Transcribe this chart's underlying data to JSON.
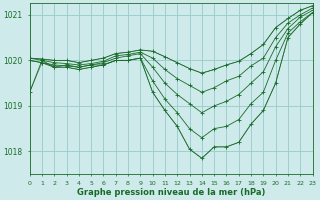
{
  "title": "Graphe pression niveau de la mer (hPa)",
  "background_color": "#ceeaea",
  "grid_color": "#9ecfcf",
  "line_color": "#1a6b2a",
  "xlim": [
    0,
    23
  ],
  "ylim": [
    1017.5,
    1021.25
  ],
  "yticks": [
    1018,
    1019,
    1020,
    1021
  ],
  "xtick_labels": [
    "0",
    "1",
    "2",
    "3",
    "4",
    "5",
    "6",
    "7",
    "8",
    "9",
    "10",
    "11",
    "12",
    "13",
    "14",
    "15",
    "16",
    "17",
    "18",
    "19",
    "20",
    "21",
    "22",
    "23"
  ],
  "series": [
    [
      1019.3,
      1020.0,
      1019.85,
      1019.9,
      1019.85,
      1019.9,
      1019.9,
      1020.0,
      1020.0,
      1020.05,
      1019.3,
      1018.9,
      1018.55,
      1018.05,
      1017.85,
      1018.1,
      1018.1,
      1018.2,
      1018.6,
      1018.9,
      1019.5,
      1020.5,
      1020.8,
      1021.05
    ],
    [
      1020.0,
      1019.95,
      1019.85,
      1019.85,
      1019.8,
      1019.85,
      1019.9,
      1020.0,
      1020.0,
      1020.05,
      1019.55,
      1019.15,
      1018.85,
      1018.5,
      1018.3,
      1018.5,
      1018.55,
      1018.7,
      1019.05,
      1019.3,
      1020.0,
      1020.6,
      1020.85,
      1021.05
    ],
    [
      1020.0,
      1019.95,
      1019.9,
      1019.88,
      1019.85,
      1019.9,
      1019.95,
      1020.05,
      1020.1,
      1020.15,
      1019.85,
      1019.5,
      1019.25,
      1019.05,
      1018.85,
      1019.0,
      1019.1,
      1019.25,
      1019.5,
      1019.75,
      1020.3,
      1020.7,
      1020.95,
      1021.1
    ],
    [
      1020.05,
      1020.0,
      1019.95,
      1019.93,
      1019.9,
      1019.93,
      1019.98,
      1020.1,
      1020.13,
      1020.18,
      1020.05,
      1019.8,
      1019.6,
      1019.45,
      1019.3,
      1019.4,
      1019.55,
      1019.65,
      1019.88,
      1020.05,
      1020.5,
      1020.82,
      1021.0,
      1021.15
    ],
    [
      1020.05,
      1020.03,
      1020.0,
      1020.0,
      1019.95,
      1020.0,
      1020.05,
      1020.15,
      1020.18,
      1020.23,
      1020.2,
      1020.08,
      1019.95,
      1019.82,
      1019.72,
      1019.8,
      1019.9,
      1019.98,
      1020.15,
      1020.35,
      1020.72,
      1020.92,
      1021.1,
      1021.2
    ]
  ]
}
